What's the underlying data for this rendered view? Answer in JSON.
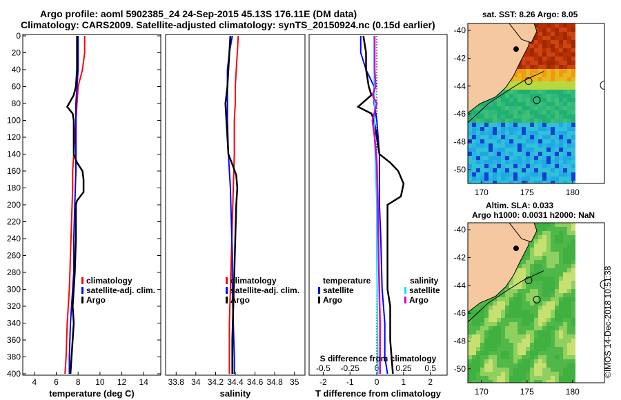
{
  "header": {
    "title_line1": "Argo profile: aoml 5902385_24 24-Sep-2015 45.13S 176.11E (DM data)",
    "title_line2": "Climatology: CARS2009. Satellite-adjusted climatology: synTS_20150924.nc (0.15d earlier)"
  },
  "credit": "©IMOS 14-Dec-2018 10:51:38",
  "colors": {
    "climatology": "#ff0000",
    "satellite": "#0000ff",
    "argo": "#000000",
    "sat_diff": "#00e6ff",
    "argo_diff": "#d000d0",
    "land": "#f5c8a0"
  },
  "chart_data": [
    {
      "type": "line",
      "id": "temperature",
      "xlabel": "temperature (deg C)",
      "ylabel": "",
      "xlim": [
        3,
        15.5
      ],
      "ylim": [
        400,
        0
      ],
      "xticks": [
        4,
        6,
        8,
        10,
        12,
        14
      ],
      "yticks": [
        0,
        20,
        40,
        60,
        80,
        100,
        120,
        140,
        160,
        180,
        200,
        220,
        240,
        260,
        280,
        300,
        320,
        340,
        360,
        380,
        400
      ],
      "legend": [
        "climatology",
        "satellite-adj. clim.",
        "Argo"
      ],
      "series": [
        {
          "name": "climatology",
          "color": "#ff0000",
          "points": [
            [
              8.6,
              0
            ],
            [
              8.6,
              20
            ],
            [
              8.4,
              40
            ],
            [
              8.0,
              60
            ],
            [
              7.9,
              80
            ],
            [
              7.8,
              100
            ],
            [
              7.7,
              120
            ],
            [
              7.6,
              140
            ],
            [
              7.5,
              160
            ],
            [
              7.5,
              180
            ],
            [
              7.4,
              220
            ],
            [
              7.3,
              260
            ],
            [
              7.2,
              300
            ],
            [
              7.0,
              340
            ],
            [
              6.9,
              380
            ],
            [
              6.8,
              400
            ]
          ]
        },
        {
          "name": "satellite-adj. clim.",
          "color": "#0000ff",
          "points": [
            [
              8.0,
              0
            ],
            [
              8.0,
              20
            ],
            [
              8.0,
              40
            ],
            [
              7.9,
              60
            ],
            [
              7.8,
              80
            ],
            [
              7.8,
              100
            ],
            [
              7.8,
              120
            ],
            [
              7.8,
              140
            ],
            [
              7.8,
              160
            ],
            [
              7.7,
              200
            ],
            [
              7.6,
              240
            ],
            [
              7.6,
              280
            ],
            [
              7.5,
              300
            ],
            [
              7.3,
              340
            ],
            [
              7.2,
              380
            ],
            [
              7.2,
              400
            ]
          ]
        },
        {
          "name": "Argo",
          "color": "#000000",
          "points": [
            [
              7.9,
              0
            ],
            [
              7.9,
              20
            ],
            [
              7.9,
              40
            ],
            [
              7.8,
              60
            ],
            [
              7.6,
              70
            ],
            [
              7.0,
              84
            ],
            [
              7.5,
              92
            ],
            [
              7.6,
              100
            ],
            [
              7.6,
              140
            ],
            [
              7.9,
              150
            ],
            [
              8.4,
              160
            ],
            [
              8.5,
              170
            ],
            [
              8.5,
              185
            ],
            [
              7.9,
              195
            ],
            [
              7.8,
              200
            ],
            [
              7.8,
              240
            ],
            [
              7.7,
              280
            ],
            [
              7.6,
              300
            ],
            [
              7.5,
              320
            ],
            [
              7.6,
              340
            ],
            [
              7.5,
              360
            ],
            [
              7.4,
              380
            ],
            [
              7.3,
              400
            ]
          ]
        }
      ]
    },
    {
      "type": "line",
      "id": "salinity",
      "xlabel": "salinity",
      "ylabel": "",
      "xlim": [
        33.7,
        35.1
      ],
      "ylim": [
        400,
        0
      ],
      "xticks": [
        "33.8",
        "34",
        "34.2",
        "34.4",
        "34.6",
        "34.8",
        "35"
      ],
      "legend": [
        "climatology",
        "satellite-adj. clim.",
        "Argo"
      ],
      "series": [
        {
          "name": "climatology",
          "color": "#ff0000",
          "points": [
            [
              34.43,
              0
            ],
            [
              34.42,
              20
            ],
            [
              34.41,
              40
            ],
            [
              34.4,
              60
            ],
            [
              34.4,
              80
            ],
            [
              34.39,
              100
            ],
            [
              34.39,
              140
            ],
            [
              34.38,
              180
            ],
            [
              34.37,
              220
            ],
            [
              34.36,
              260
            ],
            [
              34.35,
              300
            ],
            [
              34.34,
              340
            ],
            [
              34.34,
              380
            ],
            [
              34.34,
              400
            ]
          ]
        },
        {
          "name": "satellite-adj. clim.",
          "color": "#0000ff",
          "points": [
            [
              34.37,
              0
            ],
            [
              34.34,
              20
            ],
            [
              34.32,
              40
            ],
            [
              34.32,
              60
            ],
            [
              34.32,
              80
            ],
            [
              34.32,
              100
            ],
            [
              34.33,
              140
            ],
            [
              34.35,
              180
            ],
            [
              34.36,
              220
            ],
            [
              34.37,
              260
            ],
            [
              34.37,
              300
            ],
            [
              34.38,
              340
            ],
            [
              34.39,
              380
            ],
            [
              34.39,
              400
            ]
          ]
        },
        {
          "name": "Argo",
          "color": "#000000",
          "points": [
            [
              34.35,
              0
            ],
            [
              34.34,
              20
            ],
            [
              34.33,
              40
            ],
            [
              34.32,
              60
            ],
            [
              34.3,
              80
            ],
            [
              34.31,
              100
            ],
            [
              34.32,
              120
            ],
            [
              34.33,
              140
            ],
            [
              34.38,
              155
            ],
            [
              34.41,
              165
            ],
            [
              34.42,
              180
            ],
            [
              34.41,
              200
            ],
            [
              34.4,
              240
            ],
            [
              34.39,
              280
            ],
            [
              34.38,
              320
            ],
            [
              34.37,
              360
            ],
            [
              34.37,
              400
            ]
          ]
        }
      ]
    },
    {
      "type": "line",
      "id": "difference",
      "xlabel": "T difference from climatology",
      "xlabel_top": "S difference from climatology",
      "xlim": [
        -2.5,
        2.6
      ],
      "ylim": [
        400,
        0
      ],
      "xticks": [
        "-2",
        "-1",
        "0",
        "1",
        "2"
      ],
      "xticks_s": [
        "-0.5",
        "-0.25",
        "0",
        "0.25",
        "0.5"
      ],
      "legend_groups": {
        "temperature": "temperature",
        "salinity": "salinity"
      },
      "legend": [
        "satellite",
        "Argo",
        "satellite",
        "Argo"
      ],
      "series": [
        {
          "name": "temperature satellite",
          "color": "#0000ff",
          "points": [
            [
              -0.6,
              0
            ],
            [
              -0.6,
              20
            ],
            [
              -0.4,
              40
            ],
            [
              -0.1,
              60
            ],
            [
              -0.1,
              80
            ],
            [
              0,
              100
            ],
            [
              0.1,
              140
            ],
            [
              0.1,
              200
            ],
            [
              0.15,
              240
            ],
            [
              0.2,
              300
            ],
            [
              0.3,
              340
            ],
            [
              0.3,
              380
            ],
            [
              0.4,
              400
            ]
          ]
        },
        {
          "name": "temperature Argo",
          "color": "#000000",
          "points": [
            [
              -0.5,
              0
            ],
            [
              -0.4,
              20
            ],
            [
              -0.4,
              40
            ],
            [
              -0.3,
              60
            ],
            [
              -0.2,
              70
            ],
            [
              -0.7,
              84
            ],
            [
              -0.2,
              92
            ],
            [
              -0.1,
              100
            ],
            [
              0.1,
              140
            ],
            [
              0.5,
              150
            ],
            [
              0.8,
              160
            ],
            [
              1.0,
              175
            ],
            [
              0.9,
              190
            ],
            [
              0.4,
              200
            ],
            [
              0.4,
              240
            ],
            [
              0.4,
              300
            ],
            [
              0.5,
              320
            ],
            [
              0.5,
              360
            ],
            [
              0.6,
              400
            ]
          ]
        },
        {
          "name": "salinity satellite",
          "color": "#00e6ff",
          "points": [
            [
              -0.025,
              0
            ],
            [
              -0.025,
              40
            ],
            [
              -0.02,
              80
            ],
            [
              -0.02,
              120
            ],
            [
              -0.01,
              160
            ],
            [
              0,
              200
            ],
            [
              0,
              260
            ],
            [
              0.005,
              320
            ],
            [
              0.01,
              400
            ]
          ]
        },
        {
          "name": "salinity Argo",
          "color": "#d000d0",
          "points": [
            [
              -0.02,
              0
            ],
            [
              -0.02,
              40
            ],
            [
              -0.01,
              60
            ],
            [
              -0.04,
              70
            ],
            [
              0,
              80
            ],
            [
              -0.04,
              100
            ],
            [
              -0.02,
              120
            ],
            [
              0,
              150
            ],
            [
              0.01,
              200
            ],
            [
              0.02,
              280
            ],
            [
              0.03,
              340
            ],
            [
              0.03,
              400
            ]
          ]
        }
      ]
    },
    {
      "type": "heatmap",
      "id": "sst-map",
      "title": "sat. SST: 8.26 Argo: 8.05",
      "xticks": [
        "170",
        "175",
        "180"
      ],
      "yticks": [
        "-40",
        "-42",
        "-44",
        "-46",
        "-48",
        "-50"
      ],
      "xlim": [
        168.5,
        183.5
      ],
      "ylim": [
        -51,
        -39.5
      ]
    },
    {
      "type": "heatmap",
      "id": "sla-map",
      "title": "Altim. SLA: 0.033",
      "subtitle": "Argo h1000: 0.0031 h2000: NaN",
      "xticks": [
        "170",
        "175",
        "180"
      ],
      "yticks": [
        "-40",
        "-42",
        "-44",
        "-46",
        "-48",
        "-50"
      ],
      "xlim": [
        168.5,
        183.5
      ],
      "ylim": [
        -51,
        -39.5
      ]
    }
  ]
}
